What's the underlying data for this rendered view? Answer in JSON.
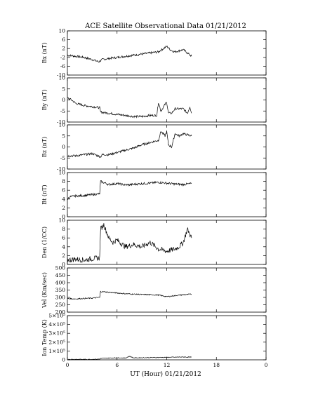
{
  "title": "ACE Satellite Observational Data   01/21/2012",
  "xlabel": "UT (Hour)  01/21/2012",
  "x_ticks": [
    "0",
    "6",
    "12",
    "18",
    "0"
  ],
  "chart_data": [
    {
      "type": "line",
      "ylabel": "Bx (nT)",
      "ylim": [
        -10,
        10
      ],
      "yticks": [
        "10",
        "6",
        "2",
        "-2",
        "-6",
        "-10"
      ],
      "x": [
        0,
        1,
        2,
        3,
        3.8,
        4.2,
        5,
        6,
        7,
        8,
        9,
        10,
        11,
        11.6,
        12,
        12.6,
        13,
        14,
        14.5,
        15
      ],
      "values": [
        -1,
        -1.5,
        -2,
        -3,
        -4,
        -3,
        -2.5,
        -2,
        -1.5,
        -1,
        -0.5,
        0,
        0.5,
        2,
        3,
        1,
        0.5,
        1.5,
        0,
        -1.5
      ]
    },
    {
      "type": "line",
      "ylabel": "By (nT)",
      "ylim": [
        -10,
        10
      ],
      "yticks": [
        "10",
        "5",
        "0",
        "-5",
        "-10"
      ],
      "x": [
        0,
        0.5,
        1,
        2,
        3,
        3.9,
        4,
        5,
        6,
        7,
        8,
        9,
        10,
        10.8,
        11,
        11.3,
        11.8,
        12,
        12.2,
        12.6,
        13,
        14,
        14.5,
        14.8,
        15
      ],
      "values": [
        1,
        0,
        -1.5,
        -2.5,
        -3,
        -3.5,
        -5.5,
        -6,
        -6.5,
        -7,
        -7.5,
        -7.5,
        -7,
        -7,
        -1,
        -5,
        -2,
        -1,
        -6,
        -6,
        -4,
        -4,
        -6,
        -3,
        -6
      ]
    },
    {
      "type": "line",
      "ylabel": "Bz (nT)",
      "ylim": [
        -10,
        10
      ],
      "yticks": [
        "10",
        "5",
        "0",
        "-5",
        "-10"
      ],
      "x": [
        0,
        1,
        2,
        3,
        4,
        4.2,
        5,
        6,
        7,
        8,
        9,
        10,
        11,
        11.3,
        11.8,
        12,
        12.2,
        12.6,
        13,
        13.5,
        14,
        15
      ],
      "values": [
        -4,
        -4,
        -3.5,
        -3,
        -4.5,
        -3.5,
        -3.5,
        -2.5,
        -1.5,
        -0.5,
        1,
        2,
        3,
        7,
        5,
        7,
        1,
        0,
        6,
        5,
        6,
        5
      ]
    },
    {
      "type": "line",
      "ylabel": "Bt (nT)",
      "ylim": [
        0,
        10
      ],
      "yticks": [
        "10",
        "8",
        "6",
        "4",
        "2",
        "0"
      ],
      "x": [
        0,
        0.3,
        1,
        2,
        3,
        3.9,
        4,
        5,
        6,
        7,
        8,
        9,
        10,
        11,
        12,
        13,
        14,
        15
      ],
      "values": [
        4,
        4.5,
        4.7,
        4.8,
        5,
        5.2,
        8,
        7.3,
        7.5,
        7.2,
        7.3,
        7.5,
        7.6,
        7.8,
        7.6,
        7.4,
        7.3,
        7.5
      ]
    },
    {
      "type": "line",
      "ylabel": "Den (1/CC)",
      "ylim": [
        0,
        10
      ],
      "yticks": [
        "10",
        "8",
        "6",
        "4",
        "2",
        "0"
      ],
      "x": [
        0,
        1,
        2,
        3,
        3.9,
        4,
        4.4,
        5,
        5.5,
        6,
        7,
        8,
        9,
        10,
        11,
        12,
        13,
        13.5,
        14,
        14.5,
        15
      ],
      "values": [
        1,
        1.2,
        1,
        1.3,
        1.5,
        8,
        9,
        6,
        5,
        5.5,
        4,
        4.5,
        4,
        5,
        3.5,
        3,
        3.5,
        4,
        5,
        8,
        6
      ]
    },
    {
      "type": "line",
      "ylabel": "Vel (Km/sec)",
      "ylim": [
        200,
        500
      ],
      "yticks": [
        "500",
        "450",
        "400",
        "350",
        "300",
        "250",
        "200"
      ],
      "x": [
        0,
        1,
        2,
        3,
        3.9,
        4,
        5,
        6,
        7,
        8,
        9,
        10,
        11,
        12,
        13,
        14,
        15
      ],
      "values": [
        292,
        290,
        293,
        295,
        300,
        340,
        335,
        330,
        325,
        322,
        320,
        318,
        316,
        305,
        312,
        318,
        322
      ]
    },
    {
      "type": "line",
      "ylabel": "Ion Temp (K)",
      "ylim": [
        0,
        500000
      ],
      "yticks": [
        "5×10⁵",
        "4×10⁵",
        "3×10⁵",
        "2×10⁵",
        "1×10⁵",
        "0"
      ],
      "x": [
        0,
        1,
        2,
        3,
        3.9,
        4,
        5,
        6,
        7,
        7.5,
        8,
        9,
        10,
        11,
        12,
        13,
        14,
        15
      ],
      "values": [
        5000,
        6000,
        5000,
        6000,
        8000,
        15000,
        20000,
        22000,
        20000,
        40000,
        22000,
        24000,
        25000,
        27000,
        28000,
        30000,
        32000,
        30000
      ]
    }
  ]
}
